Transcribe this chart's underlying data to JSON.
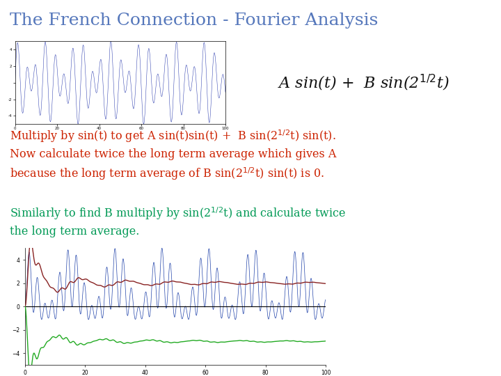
{
  "title": "The French Connection - Fourier Analysis",
  "title_color": "#5577bb",
  "title_fontsize": 18,
  "formula_color": "#111111",
  "formula_fontsize": 16,
  "text1_color": "#cc2200",
  "text2_color": "#009955",
  "text_fontsize": 11.5,
  "A": 2.0,
  "B": 3.0,
  "t_max": 100,
  "background_color": "#ffffff",
  "top_plot_color": "#2233aa",
  "bottom_blue_color": "#2244aa",
  "bottom_red_color": "#882222",
  "bottom_green_color": "#22aa22"
}
